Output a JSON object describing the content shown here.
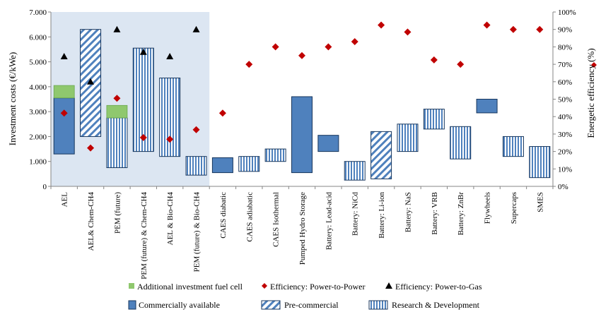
{
  "chart_data": {
    "type": "bar",
    "ylabel": "Investment costs (€/kWe)",
    "y2label": "Energetic efficiency (%)",
    "ylim": [
      0,
      7000
    ],
    "y2lim": [
      0,
      100
    ],
    "yticks": [
      "0",
      "1.000",
      "2.000",
      "3.000",
      "4.000",
      "5.000",
      "6.000",
      "7.000"
    ],
    "y2ticks": [
      "0%",
      "10%",
      "20%",
      "30%",
      "40%",
      "50%",
      "60%",
      "70%",
      "80%",
      "90%",
      "100%"
    ],
    "categories": [
      "AEL",
      "AEL& Chem-CH4",
      "PEM (future)",
      "PEM (future) & Chem-CH4",
      "AEL & Bio-CH4",
      "PEM (future) & Bio-CH4",
      "CAES diabatic",
      "CAES adiabatic",
      "CAES Isothermal",
      "Pumped Hydro Storage",
      "Battery: Lead-acid",
      "Battery: NiCd",
      "Battery: Li-ion",
      "Battery: NaS",
      "Battery: VRB",
      "Battery: ZnBr",
      "Flywheels",
      "Supercaps",
      "SMES"
    ],
    "highlight_categories": [
      0,
      5
    ],
    "ranges": [
      {
        "low": 1300,
        "high": 3550,
        "status": "commercial"
      },
      {
        "low": 2000,
        "high": 6300,
        "status": "precommercial"
      },
      {
        "low": 750,
        "high": 2750,
        "status": "rnd"
      },
      {
        "low": 1400,
        "high": 5550,
        "status": "rnd"
      },
      {
        "low": 1200,
        "high": 4350,
        "status": "rnd"
      },
      {
        "low": 450,
        "high": 1200,
        "status": "rnd"
      },
      {
        "low": 550,
        "high": 1150,
        "status": "commercial"
      },
      {
        "low": 600,
        "high": 1200,
        "status": "rnd"
      },
      {
        "low": 1000,
        "high": 1500,
        "status": "rnd"
      },
      {
        "low": 550,
        "high": 3600,
        "status": "commercial"
      },
      {
        "low": 1400,
        "high": 2050,
        "status": "commercial"
      },
      {
        "low": 250,
        "high": 1000,
        "status": "rnd"
      },
      {
        "low": 300,
        "high": 2200,
        "status": "precommercial"
      },
      {
        "low": 1400,
        "high": 2500,
        "status": "rnd"
      },
      {
        "low": 2300,
        "high": 3100,
        "status": "rnd"
      },
      {
        "low": 1100,
        "high": 2400,
        "status": "rnd"
      },
      {
        "low": 2950,
        "high": 3500,
        "status": "commercial"
      },
      {
        "low": 1200,
        "high": 2000,
        "status": "rnd"
      },
      {
        "low": 350,
        "high": 1600,
        "status": "rnd"
      }
    ],
    "fuel_cell": [
      {
        "index": 0,
        "low": 3550,
        "high": 4050
      },
      {
        "index": 2,
        "low": 2750,
        "high": 3250
      }
    ],
    "series": [
      {
        "name": "Efficiency: Power-to-Power",
        "marker": "diamond",
        "color": "#c00000",
        "values": [
          42,
          22,
          50.5,
          28,
          27,
          32.5,
          42,
          70,
          80,
          75,
          80,
          83,
          92.5,
          88.5,
          72.5,
          70,
          92.5,
          90,
          90
        ]
      },
      {
        "name": "Efficiency: Power-to-Gas",
        "marker": "triangle",
        "color": "#000000",
        "values": [
          74.5,
          60,
          90,
          77,
          74.5,
          90,
          null,
          null,
          null,
          null,
          null,
          null,
          null,
          null,
          null,
          null,
          null,
          null,
          null
        ]
      }
    ],
    "legend": [
      {
        "label": "Additional investment fuel cell",
        "kind": "swatch-green"
      },
      {
        "label": "Efficiency: Power-to-Power",
        "kind": "diamond"
      },
      {
        "label": "Efficiency: Power-to-Gas",
        "kind": "triangle"
      },
      {
        "label": "Commercially available",
        "kind": "swatch-solid"
      },
      {
        "label": "Pre-commercial",
        "kind": "swatch-diagonal"
      },
      {
        "label": "Research & Development",
        "kind": "swatch-vertical"
      }
    ],
    "colors": {
      "bar": "#4f81bd",
      "bar_edge": "#17365d",
      "fuel_cell": "#8fc86e",
      "highlight_bg": "#dce6f2",
      "diamond": "#c00000",
      "triangle": "#000000"
    }
  }
}
